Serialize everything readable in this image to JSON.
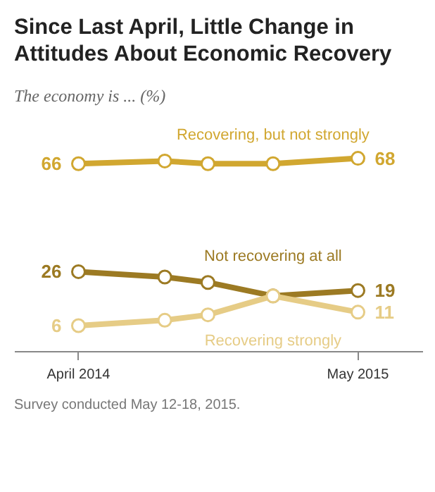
{
  "chart_data": {
    "type": "line",
    "title": "Since Last April, Little Change in Attitudes About Economic Recovery",
    "subtitle": "The economy is ... (%)",
    "x": [
      "2014-04",
      "2014-08",
      "2014-10",
      "2015-01",
      "2015-05"
    ],
    "xlim": [
      "2014-01",
      "2015-08"
    ],
    "xticks": [
      {
        "value": "2014-04",
        "label": "April 2014"
      },
      {
        "value": "2015-05",
        "label": "May 2015"
      }
    ],
    "series": [
      {
        "name": "Recovering, but not strongly",
        "color": "#d1a730",
        "values": [
          66,
          67,
          66,
          66,
          68
        ],
        "value_labels": [
          "66",
          null,
          null,
          null,
          "68"
        ]
      },
      {
        "name": "Not recovering at all",
        "color": "#9c7a23",
        "values": [
          26,
          24,
          22,
          17,
          19
        ],
        "value_labels": [
          "26",
          null,
          null,
          null,
          "19"
        ]
      },
      {
        "name": "Recovering strongly",
        "color": "#e6cc86",
        "values": [
          6,
          8,
          10,
          17,
          11
        ],
        "value_labels": [
          "6",
          null,
          null,
          null,
          "11"
        ]
      }
    ],
    "marker": "circle",
    "line_style": "solid",
    "grid": false,
    "legend": false,
    "annotations": [
      "Survey conducted May 12-18, 2015."
    ]
  }
}
